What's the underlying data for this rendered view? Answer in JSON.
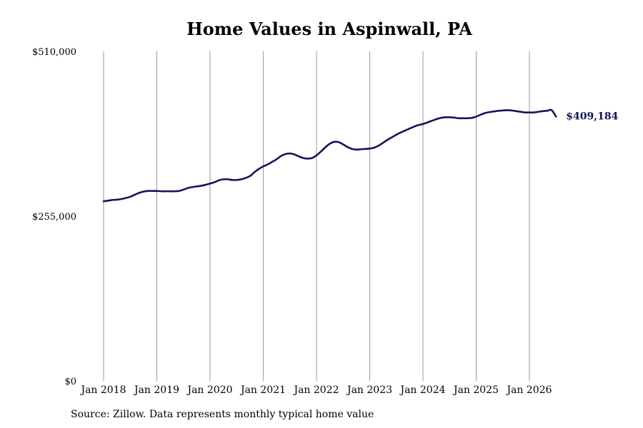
{
  "chart_data": {
    "type": "line",
    "title": "Home Values in Aspinwall, PA",
    "xlabel": "",
    "ylabel": "",
    "ylim": [
      0,
      510000
    ],
    "yticks": [
      {
        "value": 0,
        "label": "$0"
      },
      {
        "value": 255000,
        "label": "$255,000"
      },
      {
        "value": 510000,
        "label": "$510,000"
      }
    ],
    "xticks": [
      {
        "value": "2018-01",
        "label": "Jan 2018"
      },
      {
        "value": "2019-01",
        "label": "Jan 2019"
      },
      {
        "value": "2020-01",
        "label": "Jan 2020"
      },
      {
        "value": "2021-01",
        "label": "Jan 2021"
      },
      {
        "value": "2022-01",
        "label": "Jan 2022"
      },
      {
        "value": "2023-01",
        "label": "Jan 2023"
      },
      {
        "value": "2024-01",
        "label": "Jan 2024"
      },
      {
        "value": "2025-01",
        "label": "Jan 2025"
      },
      {
        "value": "2026-01",
        "label": "Jan 2026"
      }
    ],
    "grid": {
      "vertical": true,
      "horizontal": false
    },
    "line_color": "#14145a",
    "end_label": "$409,184",
    "series": [
      {
        "x": [
          "2018-01",
          "2018-02",
          "2018-03",
          "2018-04",
          "2018-05",
          "2018-06",
          "2018-07",
          "2018-08",
          "2018-09",
          "2018-10",
          "2018-11",
          "2018-12",
          "2019-01",
          "2019-02",
          "2019-03",
          "2019-04",
          "2019-05",
          "2019-06",
          "2019-07",
          "2019-08",
          "2019-09",
          "2019-10",
          "2019-11",
          "2019-12",
          "2020-01",
          "2020-02",
          "2020-03",
          "2020-04",
          "2020-05",
          "2020-06",
          "2020-07",
          "2020-08",
          "2020-09",
          "2020-10",
          "2020-11",
          "2020-12",
          "2021-01",
          "2021-02",
          "2021-03",
          "2021-04",
          "2021-05",
          "2021-06",
          "2021-07",
          "2021-08",
          "2021-09",
          "2021-10",
          "2021-11",
          "2021-12",
          "2022-01",
          "2022-02",
          "2022-03",
          "2022-04",
          "2022-05",
          "2022-06",
          "2022-07",
          "2022-08",
          "2022-09",
          "2022-10",
          "2022-11",
          "2022-12",
          "2023-01",
          "2023-02",
          "2023-03",
          "2023-04",
          "2023-05",
          "2023-06",
          "2023-07",
          "2023-08",
          "2023-09",
          "2023-10",
          "2023-11",
          "2023-12",
          "2024-01",
          "2024-02",
          "2024-03",
          "2024-04",
          "2024-05",
          "2024-06",
          "2024-07",
          "2024-08",
          "2024-09",
          "2024-10",
          "2024-11",
          "2024-12",
          "2025-01",
          "2025-02",
          "2025-03",
          "2025-04",
          "2025-05",
          "2025-06",
          "2025-07",
          "2025-08",
          "2025-09",
          "2025-10",
          "2025-11",
          "2025-12",
          "2026-01",
          "2026-02",
          "2026-03",
          "2026-04",
          "2026-05",
          "2026-06",
          "2026-07"
        ],
        "y": [
          278000,
          279000,
          280000,
          280500,
          281500,
          283000,
          285000,
          288000,
          291000,
          293000,
          294000,
          294000,
          294000,
          293500,
          293500,
          293500,
          293500,
          294000,
          296000,
          298500,
          300000,
          301000,
          302000,
          303500,
          305500,
          307500,
          310500,
          312000,
          312000,
          311000,
          311000,
          312000,
          314000,
          317000,
          323000,
          328000,
          332000,
          335000,
          339000,
          343000,
          348000,
          351000,
          352000,
          350500,
          347500,
          345000,
          344000,
          345000,
          349000,
          355000,
          361500,
          367000,
          370000,
          369500,
          366000,
          362000,
          359000,
          358000,
          358500,
          359000,
          359500,
          361000,
          364000,
          368500,
          373000,
          377000,
          381000,
          384500,
          387500,
          390500,
          393500,
          396000,
          397500,
          400000,
          402500,
          405000,
          407000,
          408000,
          408000,
          407500,
          406500,
          406500,
          406500,
          407000,
          409000,
          412000,
          414500,
          416000,
          417000,
          418000,
          418500,
          419000,
          418500,
          417500,
          416500,
          415500,
          415500,
          415500,
          416500,
          417500,
          418000,
          419000,
          409184
        ]
      }
    ],
    "source": "Source: Zillow. Data represents monthly typical home value"
  }
}
